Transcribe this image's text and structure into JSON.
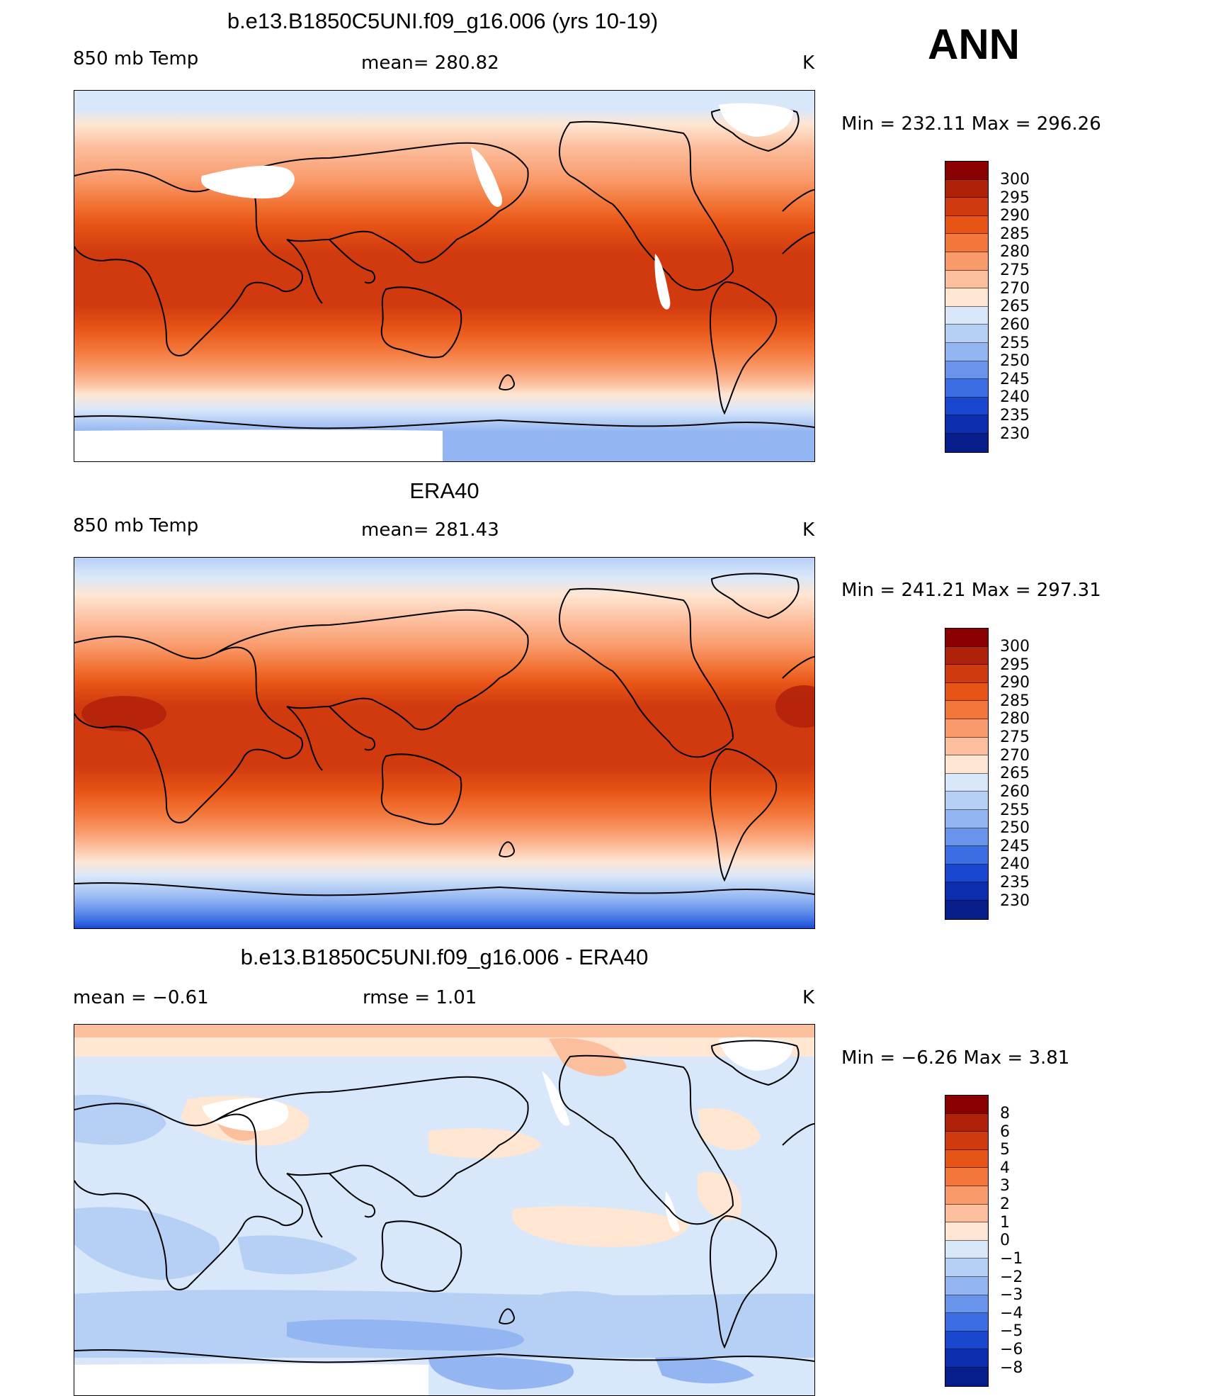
{
  "season": "ANN",
  "panels": [
    {
      "id": "model",
      "title": "b.e13.B1850C5UNI.f09_g16.006 (yrs 10-19)",
      "left_label": "850 mb Temp",
      "center_label": "mean= 280.82",
      "units": "K",
      "minmax": "Min  =  232.11  Max  =  296.26",
      "levels": [
        "300",
        "295",
        "290",
        "285",
        "280",
        "275",
        "270",
        "265",
        "260",
        "255",
        "250",
        "245",
        "240",
        "235",
        "230"
      ],
      "colors": [
        "#8b0000",
        "#b0210a",
        "#d13a0f",
        "#e85416",
        "#f3773a",
        "#f99a6b",
        "#fcbf9e",
        "#fee6d3",
        "#d8e7fa",
        "#b6cff5",
        "#93b5f2",
        "#6a94ec",
        "#3b6de5",
        "#1a47cf",
        "#0a2eae",
        "#071d8a"
      ]
    },
    {
      "id": "obs",
      "title": "ERA40",
      "left_label": "850 mb Temp",
      "center_label": "mean= 281.43",
      "units": "K",
      "minmax": "Min  =  241.21  Max  =  297.31",
      "levels": [
        "300",
        "295",
        "290",
        "285",
        "280",
        "275",
        "270",
        "265",
        "260",
        "255",
        "250",
        "245",
        "240",
        "235",
        "230"
      ],
      "colors": [
        "#8b0000",
        "#b0210a",
        "#d13a0f",
        "#e85416",
        "#f3773a",
        "#f99a6b",
        "#fcbf9e",
        "#fee6d3",
        "#d8e7fa",
        "#b6cff5",
        "#93b5f2",
        "#6a94ec",
        "#3b6de5",
        "#1a47cf",
        "#0a2eae",
        "#071d8a"
      ]
    },
    {
      "id": "diff",
      "title": "b.e13.B1850C5UNI.f09_g16.006 - ERA40",
      "left_label": "mean =    −0.61",
      "center_label": "rmse =     1.01",
      "units": "K",
      "minmax": "Min  =    −6.26  Max  =     3.81",
      "levels": [
        "8",
        "6",
        "5",
        "4",
        "3",
        "2",
        "1",
        "0",
        "−1",
        "−2",
        "−3",
        "−4",
        "−5",
        "−6",
        "−8"
      ],
      "colors": [
        "#8b0000",
        "#b0210a",
        "#d13a0f",
        "#e85416",
        "#f3773a",
        "#f99a6b",
        "#fcbf9e",
        "#fee6d3",
        "#d8e7fa",
        "#b6cff5",
        "#93b5f2",
        "#6a94ec",
        "#3b6de5",
        "#1a47cf",
        "#0a2eae",
        "#071d8a"
      ]
    }
  ],
  "chart_data": {
    "type": "heatmap",
    "variable": "850 mb Temp",
    "units": "K",
    "season": "ANN",
    "panels": [
      {
        "title": "b.e13.B1850C5UNI.f09_g16.006 (yrs 10-19)",
        "mean": 280.82,
        "min": 232.11,
        "max": 296.26,
        "contour_levels": [
          230,
          235,
          240,
          245,
          250,
          255,
          260,
          265,
          270,
          275,
          280,
          285,
          290,
          295,
          300
        ]
      },
      {
        "title": "ERA40",
        "mean": 281.43,
        "min": 241.21,
        "max": 297.31,
        "contour_levels": [
          230,
          235,
          240,
          245,
          250,
          255,
          260,
          265,
          270,
          275,
          280,
          285,
          290,
          295,
          300
        ]
      },
      {
        "title": "b.e13.B1850C5UNI.f09_g16.006 - ERA40",
        "mean": -0.61,
        "rmse": 1.01,
        "min": -6.26,
        "max": 3.81,
        "contour_levels": [
          -8,
          -6,
          -5,
          -4,
          -3,
          -2,
          -1,
          0,
          1,
          2,
          3,
          4,
          5,
          6,
          8
        ]
      }
    ]
  }
}
